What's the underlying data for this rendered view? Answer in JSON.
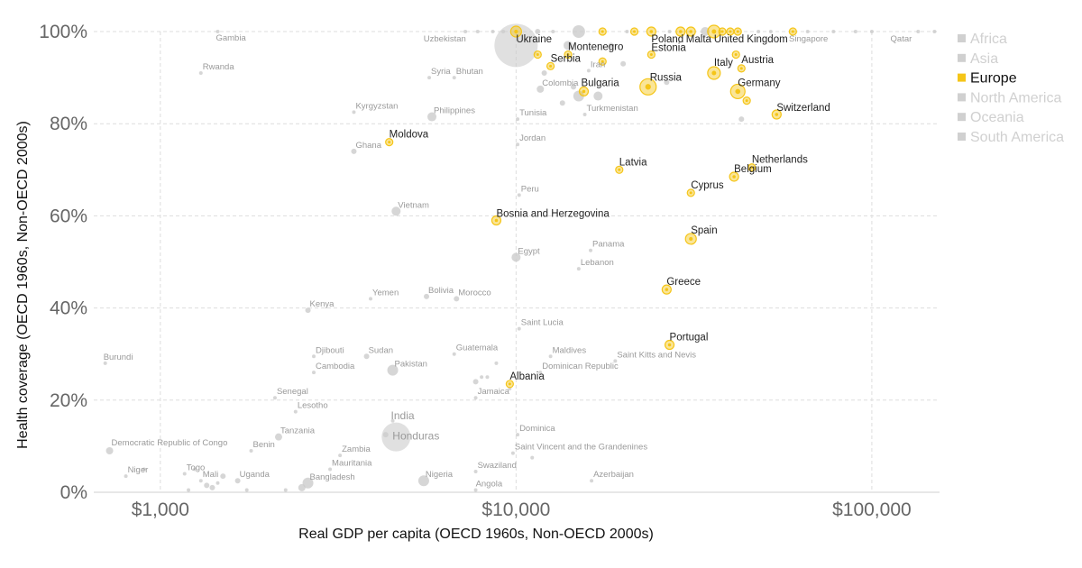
{
  "chart_data": {
    "type": "scatter",
    "xlabel": "Real GDP per capita (OECD 1960s, Non-OECD 2000s)",
    "ylabel": "Health coverage (OECD 1960s, Non-OECD 2000s)",
    "x_scale": "log",
    "xlim": [
      650,
      155000
    ],
    "ylim": [
      0,
      100
    ],
    "x_ticks": [
      {
        "value": 1000,
        "label": "$1,000"
      },
      {
        "value": 10000,
        "label": "$10,000"
      },
      {
        "value": 100000,
        "label": "$100,000"
      }
    ],
    "y_ticks": [
      {
        "value": 0,
        "label": "0%"
      },
      {
        "value": 20,
        "label": "20%"
      },
      {
        "value": 40,
        "label": "40%"
      },
      {
        "value": 60,
        "label": "60%"
      },
      {
        "value": 80,
        "label": "80%"
      },
      {
        "value": 100,
        "label": "100%"
      }
    ],
    "grid": true,
    "legend_position": "right",
    "highlight_region": "Europe",
    "colors": {
      "highlight": "#f5c518",
      "muted": "#cccccc",
      "legend_muted": "#d0d0d0"
    },
    "legend": [
      {
        "label": "Africa",
        "highlight": false
      },
      {
        "label": "Asia",
        "highlight": false
      },
      {
        "label": "Europe",
        "highlight": true
      },
      {
        "label": "North America",
        "highlight": false
      },
      {
        "label": "Oceania",
        "highlight": false
      },
      {
        "label": "South America",
        "highlight": false
      }
    ],
    "points": [
      {
        "name": "Ukraine",
        "region": "Europe",
        "x": 10000,
        "y": 100,
        "size": 6
      },
      {
        "name": "Poland",
        "region": "Europe",
        "x": 24000,
        "y": 100,
        "size": 5
      },
      {
        "name": "Malta",
        "region": "Europe",
        "x": 29000,
        "y": 100,
        "size": 5
      },
      {
        "name": "United Kingdom",
        "region": "Europe",
        "x": 36000,
        "y": 100,
        "size": 7
      },
      {
        "name": "Montenegro",
        "region": "Europe",
        "x": 14000,
        "y": 95,
        "size": 4
      },
      {
        "name": "Estonia",
        "region": "Europe",
        "x": 24000,
        "y": 95,
        "size": 4
      },
      {
        "name": "Serbia",
        "region": "Europe",
        "x": 12500,
        "y": 92.5,
        "size": 4
      },
      {
        "name": "Austria",
        "region": "Europe",
        "x": 43000,
        "y": 92,
        "size": 4
      },
      {
        "name": "Italy",
        "region": "Europe",
        "x": 36000,
        "y": 91,
        "size": 7
      },
      {
        "name": "Russia",
        "region": "Europe",
        "x": 23500,
        "y": 88,
        "size": 9
      },
      {
        "name": "Bulgaria",
        "region": "Europe",
        "x": 15500,
        "y": 87,
        "size": 5
      },
      {
        "name": "Germany",
        "region": "Europe",
        "x": 42000,
        "y": 87,
        "size": 8
      },
      {
        "name": "Switzerland",
        "region": "Europe",
        "x": 54000,
        "y": 82,
        "size": 5
      },
      {
        "name": "Moldova",
        "region": "Europe",
        "x": 4400,
        "y": 76,
        "size": 4
      },
      {
        "name": "Latvia",
        "region": "Europe",
        "x": 19500,
        "y": 70,
        "size": 4
      },
      {
        "name": "Netherlands",
        "region": "Europe",
        "x": 46000,
        "y": 70.5,
        "size": 4
      },
      {
        "name": "Belgium",
        "region": "Europe",
        "x": 41000,
        "y": 68.5,
        "size": 5
      },
      {
        "name": "Cyprus",
        "region": "Europe",
        "x": 31000,
        "y": 65,
        "size": 4
      },
      {
        "name": "Bosnia and Herzegovina",
        "region": "Europe",
        "x": 8800,
        "y": 59,
        "size": 5
      },
      {
        "name": "Spain",
        "region": "Europe",
        "x": 31000,
        "y": 55,
        "size": 6
      },
      {
        "name": "Greece",
        "region": "Europe",
        "x": 26500,
        "y": 44,
        "size": 5
      },
      {
        "name": "Portugal",
        "region": "Europe",
        "x": 27000,
        "y": 32,
        "size": 5
      },
      {
        "name": "Albania",
        "region": "Europe",
        "x": 9600,
        "y": 23.5,
        "size": 4
      },
      {
        "name": "",
        "region": "Europe",
        "x": 17500,
        "y": 100,
        "size": 4
      },
      {
        "name": "",
        "region": "Europe",
        "x": 21500,
        "y": 100,
        "size": 4
      },
      {
        "name": "",
        "region": "Europe",
        "x": 31000,
        "y": 100,
        "size": 5
      },
      {
        "name": "",
        "region": "Europe",
        "x": 38000,
        "y": 100,
        "size": 4
      },
      {
        "name": "",
        "region": "Europe",
        "x": 40000,
        "y": 100,
        "size": 4
      },
      {
        "name": "",
        "region": "Europe",
        "x": 42000,
        "y": 100,
        "size": 4
      },
      {
        "name": "",
        "region": "Europe",
        "x": 60000,
        "y": 100,
        "size": 4
      },
      {
        "name": "",
        "region": "Europe",
        "x": 11500,
        "y": 95,
        "size": 4
      },
      {
        "name": "",
        "region": "Europe",
        "x": 17500,
        "y": 93.5,
        "size": 4
      },
      {
        "name": "",
        "region": "Europe",
        "x": 41500,
        "y": 95,
        "size": 4
      },
      {
        "name": "",
        "region": "Europe",
        "x": 44500,
        "y": 85,
        "size": 4
      },
      {
        "name": "Gambia",
        "region": "Other",
        "x": 1450,
        "y": 100,
        "size": 2
      },
      {
        "name": "Uzbekistan",
        "region": "Other",
        "x": 7800,
        "y": 100,
        "size": 2
      },
      {
        "name": "Singapore",
        "region": "Other",
        "x": 78000,
        "y": 100,
        "size": 2
      },
      {
        "name": "Qatar",
        "region": "Other",
        "x": 135000,
        "y": 100,
        "size": 2
      },
      {
        "name": "Rwanda",
        "region": "Other",
        "x": 1300,
        "y": 91,
        "size": 2
      },
      {
        "name": "Syria",
        "region": "Other",
        "x": 5700,
        "y": 90,
        "size": 2
      },
      {
        "name": "Bhutan",
        "region": "Other",
        "x": 6700,
        "y": 90,
        "size": 2
      },
      {
        "name": "Iran",
        "region": "Other",
        "x": 16000,
        "y": 91.5,
        "size": 2
      },
      {
        "name": "Colombia",
        "region": "Other",
        "x": 11700,
        "y": 87.5,
        "size": 4
      },
      {
        "name": "Kyrgyzstan",
        "region": "Other",
        "x": 3500,
        "y": 82.5,
        "size": 2
      },
      {
        "name": "Philippines",
        "region": "Other",
        "x": 5800,
        "y": 81.5,
        "size": 5
      },
      {
        "name": "Turkmenistan",
        "region": "Other",
        "x": 15600,
        "y": 82,
        "size": 2
      },
      {
        "name": "Tunisia",
        "region": "Other",
        "x": 10100,
        "y": 81,
        "size": 2
      },
      {
        "name": "Jordan",
        "region": "Other",
        "x": 10100,
        "y": 75.5,
        "size": 2
      },
      {
        "name": "Ghana",
        "region": "Other",
        "x": 3500,
        "y": 74,
        "size": 3
      },
      {
        "name": "Peru",
        "region": "Other",
        "x": 10200,
        "y": 64.5,
        "size": 2
      },
      {
        "name": "Vietnam",
        "region": "Other",
        "x": 4600,
        "y": 61,
        "size": 5
      },
      {
        "name": "Egypt",
        "region": "Other",
        "x": 10000,
        "y": 51,
        "size": 5
      },
      {
        "name": "Panama",
        "region": "Other",
        "x": 16200,
        "y": 52.5,
        "size": 2
      },
      {
        "name": "Lebanon",
        "region": "Other",
        "x": 15000,
        "y": 48.5,
        "size": 2
      },
      {
        "name": "Kenya",
        "region": "Other",
        "x": 2600,
        "y": 39.5,
        "size": 3
      },
      {
        "name": "Yemen",
        "region": "Other",
        "x": 3900,
        "y": 42,
        "size": 2
      },
      {
        "name": "Bolivia",
        "region": "Other",
        "x": 5600,
        "y": 42.5,
        "size": 3
      },
      {
        "name": "Morocco",
        "region": "Other",
        "x": 6800,
        "y": 42,
        "size": 3
      },
      {
        "name": "Saint Lucia",
        "region": "Other",
        "x": 10200,
        "y": 35.5,
        "size": 2
      },
      {
        "name": "Burundi",
        "region": "Other",
        "x": 700,
        "y": 28,
        "size": 2
      },
      {
        "name": "Djibouti",
        "region": "Other",
        "x": 2700,
        "y": 29.5,
        "size": 2
      },
      {
        "name": "Sudan",
        "region": "Other",
        "x": 3800,
        "y": 29.5,
        "size": 3
      },
      {
        "name": "Guatemala",
        "region": "Other",
        "x": 6700,
        "y": 30,
        "size": 2
      },
      {
        "name": "Maldives",
        "region": "Other",
        "x": 12500,
        "y": 29.5,
        "size": 2
      },
      {
        "name": "Saint Kitts and Nevis",
        "region": "Other",
        "x": 19000,
        "y": 28.5,
        "size": 2
      },
      {
        "name": "Pakistan",
        "region": "Other",
        "x": 4500,
        "y": 26.5,
        "size": 6
      },
      {
        "name": "Cambodia",
        "region": "Other",
        "x": 2700,
        "y": 26,
        "size": 2
      },
      {
        "name": "Dominican Republic",
        "region": "Other",
        "x": 11700,
        "y": 26,
        "size": 2
      },
      {
        "name": "Senegal",
        "region": "Other",
        "x": 2100,
        "y": 20.5,
        "size": 2
      },
      {
        "name": "Jamaica",
        "region": "Other",
        "x": 7700,
        "y": 20.5,
        "size": 2
      },
      {
        "name": "Lesotho",
        "region": "Other",
        "x": 2400,
        "y": 17.5,
        "size": 2
      },
      {
        "name": "India",
        "region": "Other",
        "x": 4500,
        "y": 15.5,
        "size": 2
      },
      {
        "name": "Honduras",
        "region": "Other",
        "x": 4600,
        "y": 12,
        "size": 16
      },
      {
        "name": "Tanzania",
        "region": "Other",
        "x": 2150,
        "y": 12,
        "size": 4
      },
      {
        "name": "Dominica",
        "region": "Other",
        "x": 10100,
        "y": 12.5,
        "size": 2
      },
      {
        "name": "Democratic Republic of Congo",
        "region": "Other",
        "x": 720,
        "y": 9,
        "size": 4
      },
      {
        "name": "Benin",
        "region": "Other",
        "x": 1800,
        "y": 9,
        "size": 2
      },
      {
        "name": "Saint Vincent and the Grandenines",
        "region": "Other",
        "x": 9800,
        "y": 8.5,
        "size": 2
      },
      {
        "name": "Zambia",
        "region": "Other",
        "x": 3200,
        "y": 8,
        "size": 2
      },
      {
        "name": "Mauritania",
        "region": "Other",
        "x": 3000,
        "y": 5,
        "size": 2
      },
      {
        "name": "Swaziland",
        "region": "Other",
        "x": 7700,
        "y": 4.5,
        "size": 2
      },
      {
        "name": "Niger",
        "region": "Other",
        "x": 800,
        "y": 3.5,
        "size": 2
      },
      {
        "name": "Togo",
        "region": "Other",
        "x": 1170,
        "y": 4,
        "size": 2
      },
      {
        "name": "Mali",
        "region": "Other",
        "x": 1300,
        "y": 2.5,
        "size": 2
      },
      {
        "name": "Uganda",
        "region": "Other",
        "x": 1650,
        "y": 2.5,
        "size": 3
      },
      {
        "name": "Bangladesh",
        "region": "Other",
        "x": 2600,
        "y": 2,
        "size": 6
      },
      {
        "name": "Nigeria",
        "region": "Other",
        "x": 5500,
        "y": 2.5,
        "size": 6
      },
      {
        "name": "Azerbaijan",
        "region": "Other",
        "x": 16300,
        "y": 2.5,
        "size": 2
      },
      {
        "name": "Angola",
        "region": "Other",
        "x": 7700,
        "y": 0.5,
        "size": 2
      },
      {
        "name": "",
        "region": "Other",
        "x": 10000,
        "y": 97,
        "size": 24
      },
      {
        "name": "",
        "region": "Other",
        "x": 15000,
        "y": 100,
        "size": 7
      },
      {
        "name": "",
        "region": "Other",
        "x": 14000,
        "y": 97,
        "size": 5
      },
      {
        "name": "",
        "region": "Other",
        "x": 18500,
        "y": 97,
        "size": 3
      },
      {
        "name": "",
        "region": "Other",
        "x": 20000,
        "y": 93,
        "size": 3
      },
      {
        "name": "",
        "region": "Other",
        "x": 12000,
        "y": 91,
        "size": 3
      },
      {
        "name": "",
        "region": "Other",
        "x": 14500,
        "y": 88,
        "size": 3
      },
      {
        "name": "",
        "region": "Other",
        "x": 13500,
        "y": 84.5,
        "size": 3
      },
      {
        "name": "",
        "region": "Other",
        "x": 15000,
        "y": 86,
        "size": 6
      },
      {
        "name": "",
        "region": "Other",
        "x": 17000,
        "y": 86,
        "size": 5
      },
      {
        "name": "",
        "region": "Other",
        "x": 26500,
        "y": 89,
        "size": 3
      },
      {
        "name": "",
        "region": "Other",
        "x": 43000,
        "y": 81,
        "size": 3
      },
      {
        "name": "",
        "region": "Other",
        "x": 7700,
        "y": 24,
        "size": 3
      },
      {
        "name": "",
        "region": "Other",
        "x": 8000,
        "y": 25,
        "size": 2
      },
      {
        "name": "",
        "region": "Other",
        "x": 8300,
        "y": 25,
        "size": 2
      },
      {
        "name": "",
        "region": "Other",
        "x": 8800,
        "y": 28,
        "size": 2
      },
      {
        "name": "",
        "region": "Other",
        "x": 9600,
        "y": 22.5,
        "size": 2
      },
      {
        "name": "",
        "region": "Other",
        "x": 11100,
        "y": 7.5,
        "size": 2
      },
      {
        "name": "",
        "region": "Other",
        "x": 1200,
        "y": 0.5,
        "size": 2
      },
      {
        "name": "",
        "region": "Other",
        "x": 1350,
        "y": 1.5,
        "size": 3
      },
      {
        "name": "",
        "region": "Other",
        "x": 1400,
        "y": 1,
        "size": 3
      },
      {
        "name": "",
        "region": "Other",
        "x": 1450,
        "y": 2,
        "size": 2
      },
      {
        "name": "",
        "region": "Other",
        "x": 1500,
        "y": 3.5,
        "size": 3
      },
      {
        "name": "",
        "region": "Other",
        "x": 1250,
        "y": 5,
        "size": 2
      },
      {
        "name": "",
        "region": "Other",
        "x": 1750,
        "y": 0.5,
        "size": 2
      },
      {
        "name": "",
        "region": "Other",
        "x": 2250,
        "y": 0.5,
        "size": 2
      },
      {
        "name": "",
        "region": "Other",
        "x": 2500,
        "y": 1,
        "size": 4
      },
      {
        "name": "",
        "region": "Other",
        "x": 900,
        "y": 5,
        "size": 2
      },
      {
        "name": "",
        "region": "Other",
        "x": 4300,
        "y": 12.5,
        "size": 3
      },
      {
        "name": "",
        "region": "Other",
        "x": 7200,
        "y": 100,
        "size": 2
      },
      {
        "name": "",
        "region": "Other",
        "x": 8600,
        "y": 100,
        "size": 2
      },
      {
        "name": "",
        "region": "Other",
        "x": 9200,
        "y": 100,
        "size": 2
      },
      {
        "name": "",
        "region": "Other",
        "x": 11500,
        "y": 100,
        "size": 3
      },
      {
        "name": "",
        "region": "Other",
        "x": 12700,
        "y": 100,
        "size": 2
      },
      {
        "name": "",
        "region": "Other",
        "x": 20500,
        "y": 100,
        "size": 2
      },
      {
        "name": "",
        "region": "Other",
        "x": 27000,
        "y": 100,
        "size": 2
      },
      {
        "name": "",
        "region": "Other",
        "x": 34000,
        "y": 100,
        "size": 5
      },
      {
        "name": "",
        "region": "Other",
        "x": 48000,
        "y": 100,
        "size": 2
      },
      {
        "name": "",
        "region": "Other",
        "x": 52000,
        "y": 100,
        "size": 2
      },
      {
        "name": "",
        "region": "Other",
        "x": 66000,
        "y": 100,
        "size": 2
      },
      {
        "name": "",
        "region": "Other",
        "x": 90000,
        "y": 100,
        "size": 2
      },
      {
        "name": "",
        "region": "Other",
        "x": 100000,
        "y": 100,
        "size": 2
      },
      {
        "name": "",
        "region": "Other",
        "x": 150000,
        "y": 100,
        "size": 2
      }
    ]
  }
}
